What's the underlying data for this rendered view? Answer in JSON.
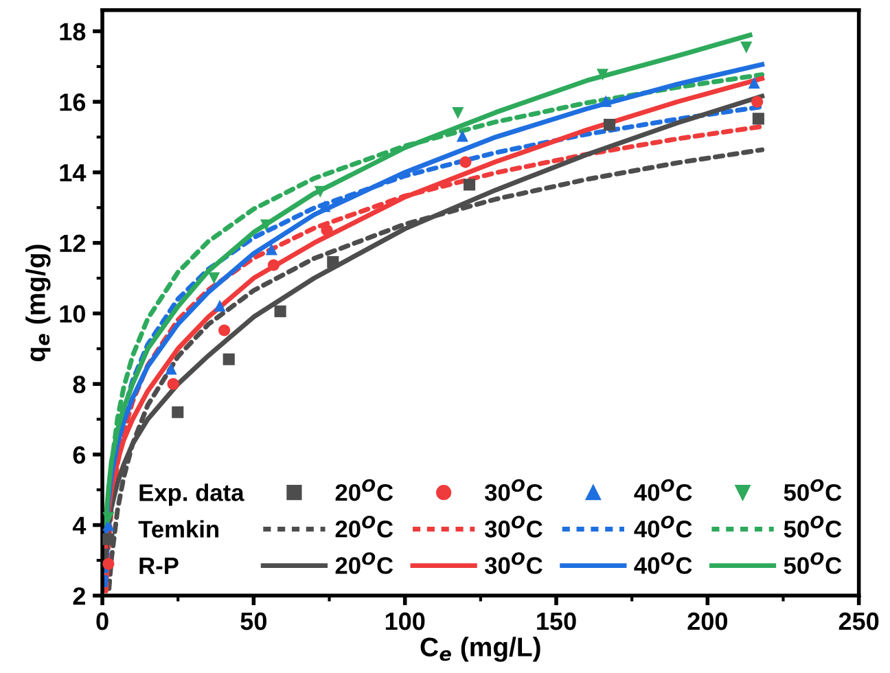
{
  "chart_data": {
    "type": "scatter",
    "xlabel": "C$_{e}$ (mg/L)",
    "ylabel": "q$_{e}$ (mg/g)",
    "xlim": [
      0,
      250
    ],
    "xticks": [
      0,
      50,
      100,
      150,
      200,
      250
    ],
    "ylim": [
      2,
      18.6
    ],
    "yticks": [
      2,
      4,
      6,
      8,
      10,
      12,
      14,
      16,
      18
    ],
    "legend": "bottom right",
    "grid": false,
    "annotations": [
      "Exp. data",
      "Temkin",
      "R-P"
    ],
    "series": [
      {
        "name": "20$^{O}$C",
        "marker": "square",
        "color": "#4d4d4d",
        "x": [
          2,
          24.9,
          41.8,
          58.8,
          76.2,
          121.3,
          167.6,
          216.8
        ],
        "values": [
          3.6,
          7.2,
          8.7,
          10.06,
          11.46,
          13.65,
          15.35,
          15.52
        ]
      },
      {
        "name": "30$^{O}$C",
        "marker": "circle",
        "color": "#ef3b3b",
        "x": [
          2,
          23.4,
          40.3,
          56.6,
          74.2,
          120,
          216.4
        ],
        "values": [
          2.9,
          8.0,
          9.52,
          11.37,
          12.36,
          14.29,
          16.0
        ]
      },
      {
        "name": "40$^{O}$C",
        "marker": "triangle",
        "color": "#1f6fe0",
        "x": [
          2,
          22.7,
          38.8,
          55.9,
          73.5,
          119,
          166.4,
          215.4
        ],
        "values": [
          4.0,
          8.43,
          10.22,
          11.82,
          13.04,
          15.03,
          16.02,
          16.54
        ]
      },
      {
        "name": "50$^{O}$C",
        "marker": "triangle_down",
        "color": "#2eaa5c",
        "x": [
          2,
          36.9,
          54.1,
          72,
          117.5,
          165.3,
          212.8
        ],
        "values": [
          4.2,
          11.0,
          12.5,
          13.45,
          15.68,
          16.77,
          17.54
        ]
      },
      {
        "name": "20$^{O}$C",
        "type": "line",
        "line_style": "dashed",
        "color": "#4d4d4d",
        "x": [
          2.2,
          3,
          5,
          7,
          10,
          15,
          25,
          35,
          50,
          70,
          100,
          130,
          160,
          190,
          218
        ],
        "values": [
          2.2,
          3.04,
          4.42,
          5.33,
          6.3,
          7.4,
          8.78,
          9.69,
          10.65,
          11.56,
          12.53,
          13.24,
          13.8,
          14.27,
          14.64
        ]
      },
      {
        "name": "30$^{O}$C",
        "type": "line",
        "line_style": "dashed",
        "color": "#ef3b3b",
        "x": [
          1.2,
          2,
          3,
          5,
          7,
          10,
          15,
          25,
          35,
          50,
          70,
          100,
          130,
          160,
          190,
          218
        ],
        "values": [
          2.13,
          3.43,
          4.45,
          5.74,
          6.6,
          7.5,
          8.53,
          9.82,
          10.67,
          11.57,
          12.42,
          13.33,
          13.99,
          14.51,
          14.95,
          15.3
        ]
      },
      {
        "name": "40$^{O}$C",
        "type": "line",
        "line_style": "dashed",
        "color": "#1f6fe0",
        "x": [
          1,
          2,
          3,
          5,
          7,
          10,
          15,
          25,
          35,
          50,
          70,
          100,
          130,
          160,
          190,
          218
        ],
        "values": [
          2.3,
          4.05,
          5.07,
          6.35,
          7.2,
          8.1,
          9.12,
          10.41,
          11.25,
          12.15,
          12.99,
          13.9,
          14.56,
          15.08,
          15.51,
          15.86
        ]
      },
      {
        "name": "50$^{O}$C",
        "type": "line",
        "line_style": "dashed",
        "color": "#2eaa5c",
        "x": [
          1,
          2,
          3,
          5,
          7,
          10,
          15,
          25,
          35,
          50,
          70,
          100,
          130,
          160,
          190,
          218
        ],
        "values": [
          2.84,
          4.64,
          5.69,
          7.01,
          7.88,
          8.8,
          9.85,
          11.17,
          12.04,
          12.96,
          13.83,
          14.75,
          15.43,
          15.97,
          16.41,
          16.77
        ]
      },
      {
        "name": "20$^{O}$C",
        "type": "line",
        "line_style": "solid",
        "color": "#4d4d4d",
        "x": [
          1,
          2,
          3,
          5,
          7,
          10,
          15,
          25,
          35,
          50,
          70,
          100,
          130,
          160,
          190,
          218
        ],
        "values": [
          3.0,
          3.9,
          4.5,
          5.2,
          5.7,
          6.3,
          7.0,
          8.0,
          8.8,
          9.9,
          11.0,
          12.4,
          13.5,
          14.5,
          15.4,
          16.16
        ]
      },
      {
        "name": "30$^{O}$C",
        "type": "line",
        "line_style": "solid",
        "color": "#ef3b3b",
        "x": [
          1,
          2,
          3,
          5,
          7,
          10,
          15,
          25,
          35,
          50,
          70,
          100,
          130,
          160,
          190,
          218
        ],
        "values": [
          3.4,
          4.4,
          5.0,
          5.8,
          6.4,
          7.0,
          7.8,
          9.0,
          9.9,
          11.0,
          12.0,
          13.3,
          14.3,
          15.2,
          16.0,
          16.66
        ]
      },
      {
        "name": "40$^{O}$C",
        "type": "line",
        "line_style": "solid",
        "color": "#1f6fe0",
        "x": [
          1,
          2,
          3,
          5,
          7,
          10,
          15,
          25,
          35,
          50,
          70,
          100,
          130,
          160,
          190,
          218
        ],
        "values": [
          3.7,
          4.7,
          5.4,
          6.3,
          6.9,
          7.6,
          8.5,
          9.7,
          10.6,
          11.7,
          12.8,
          14.0,
          15.0,
          15.8,
          16.5,
          17.06
        ]
      },
      {
        "name": "50$^{O}$C",
        "type": "line",
        "line_style": "solid",
        "color": "#2eaa5c",
        "x": [
          1,
          2,
          3,
          5,
          7,
          10,
          15,
          25,
          35,
          50,
          70,
          100,
          130,
          160,
          190,
          214
        ],
        "values": [
          4.0,
          5.0,
          5.8,
          6.7,
          7.3,
          8.0,
          9.0,
          10.2,
          11.2,
          12.3,
          13.4,
          14.7,
          15.7,
          16.6,
          17.3,
          17.89
        ]
      }
    ]
  }
}
